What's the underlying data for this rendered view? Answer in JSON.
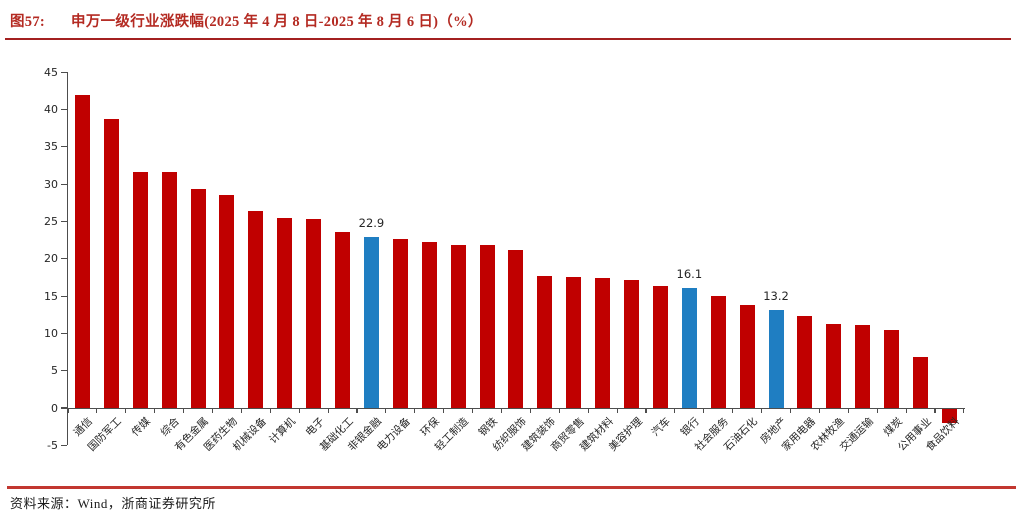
{
  "header": {
    "figure_no": "图57:",
    "title": "申万一级行业涨跌幅(2025 年 4 月 8 日-2025 年 8 月 6 日)（%）"
  },
  "footer": {
    "source": "资料来源：Wind，浙商证券研究所"
  },
  "colors": {
    "bar_red": "#C00000",
    "bar_blue": "#1F7EC2",
    "title_red": "#B42A22",
    "top_rule": "#A32020",
    "bottom_rule": "#C23730",
    "axis": "#4d4d4d",
    "label_text": "#262626"
  },
  "chart_data": {
    "type": "bar",
    "title": "申万一级行业涨跌幅(2025 年 4 月 8 日-2025 年 8 月 6 日)（%）",
    "xlabel": "",
    "ylabel": "",
    "ylim": [
      -5,
      45
    ],
    "yticks": [
      45,
      40,
      35,
      30,
      25,
      20,
      15,
      10,
      5,
      0,
      -5
    ],
    "grid": false,
    "legend": "none",
    "categories": [
      "通信",
      "国防军工",
      "传媒",
      "综合",
      "有色金属",
      "医药生物",
      "机械设备",
      "计算机",
      "电子",
      "基础化工",
      "非银金融",
      "电力设备",
      "环保",
      "轻工制造",
      "钢铁",
      "纺织服饰",
      "建筑装饰",
      "商贸零售",
      "建筑材料",
      "美容护理",
      "汽车",
      "银行",
      "社会服务",
      "石油石化",
      "房地产",
      "家用电器",
      "农林牧渔",
      "交通运输",
      "煤炭",
      "公用事业",
      "食品饮料"
    ],
    "values": [
      42.0,
      38.8,
      31.7,
      31.7,
      29.4,
      28.5,
      26.4,
      25.5,
      25.4,
      23.6,
      22.9,
      22.6,
      22.2,
      21.9,
      21.9,
      21.2,
      17.7,
      17.5,
      17.4,
      17.1,
      16.4,
      16.1,
      15.0,
      13.8,
      13.2,
      12.3,
      11.2,
      11.1,
      10.5,
      6.8,
      -1.9
    ],
    "highlight_indices": [
      10,
      21,
      24
    ],
    "data_labels": [
      {
        "index": 10,
        "text": "22.9"
      },
      {
        "index": 21,
        "text": "16.1"
      },
      {
        "index": 24,
        "text": "13.2"
      }
    ]
  }
}
